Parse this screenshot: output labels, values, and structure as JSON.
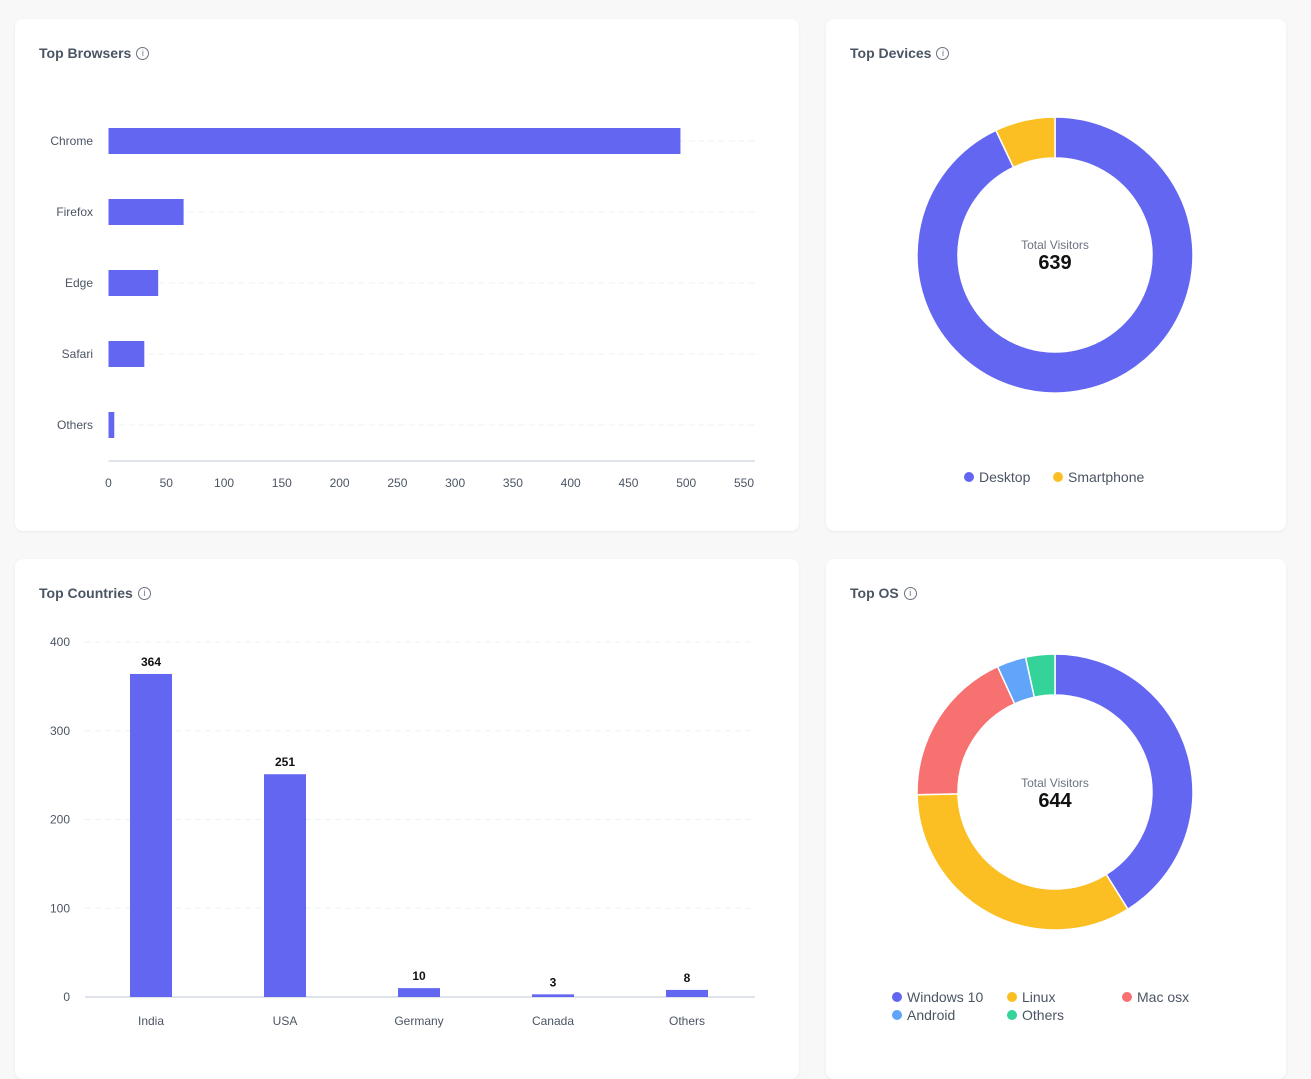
{
  "info_icon": "info-circle-icon",
  "chart_data": [
    {
      "id": "browsers",
      "type": "bar",
      "orientation": "horizontal",
      "title": "Top Browsers",
      "categories": [
        "Chrome",
        "Firefox",
        "Edge",
        "Safari",
        "Others"
      ],
      "values": [
        495,
        65,
        43,
        31,
        5
      ],
      "xlim": [
        0,
        550
      ],
      "xticks": [
        0,
        50,
        100,
        150,
        200,
        250,
        300,
        350,
        400,
        450,
        500,
        550
      ],
      "color": "#6366f1",
      "grid": true
    },
    {
      "id": "devices",
      "type": "pie",
      "donut": true,
      "title": "Top Devices",
      "center_label": "Total Visitors",
      "center_value": "639",
      "labels": [
        "Desktop",
        "Smartphone"
      ],
      "values": [
        594,
        45
      ],
      "colors": [
        "#6366f1",
        "#fbbf24"
      ],
      "legend": "bottom"
    },
    {
      "id": "countries",
      "type": "bar",
      "title": "Top Countries",
      "categories": [
        "India",
        "USA",
        "Germany",
        "Canada",
        "Others"
      ],
      "values": [
        364,
        251,
        10,
        3,
        8
      ],
      "ylim": [
        0,
        400
      ],
      "yticks": [
        0,
        100,
        200,
        300,
        400
      ],
      "color": "#6366f1",
      "data_labels": true,
      "grid": true
    },
    {
      "id": "os",
      "type": "pie",
      "donut": true,
      "title": "Top OS",
      "center_label": "Total Visitors",
      "center_value": "644",
      "labels": [
        "Windows 10",
        "Linux",
        "Mac osx",
        "Android",
        "Others"
      ],
      "values": [
        265,
        216,
        119,
        22,
        22
      ],
      "colors": [
        "#6366f1",
        "#fbbf24",
        "#f87171",
        "#60a5fa",
        "#34d399"
      ],
      "legend": "bottom"
    }
  ]
}
